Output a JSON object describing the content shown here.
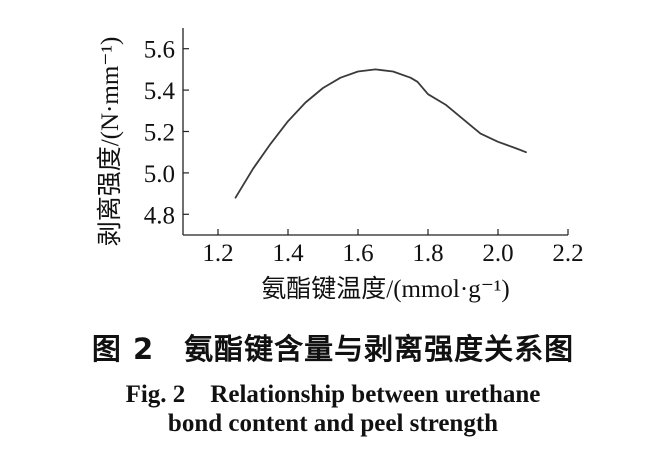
{
  "chart_data": {
    "type": "line",
    "title": "",
    "xlabel": "氨酯键温度/(mmol·g⁻¹)",
    "ylabel": "剥离强度/(N·mm⁻¹)",
    "xlim": [
      1.1,
      2.2
    ],
    "ylim": [
      4.7,
      5.7
    ],
    "xticks": [
      "1.2",
      "1.4",
      "1.6",
      "1.8",
      "2.0",
      "2.2"
    ],
    "yticks": [
      "4.8",
      "5.0",
      "5.2",
      "5.4",
      "5.6"
    ],
    "grid": false,
    "series": [
      {
        "x": [
          1.25,
          1.3,
          1.35,
          1.4,
          1.45,
          1.5,
          1.55,
          1.6,
          1.65,
          1.7,
          1.75,
          1.77,
          1.8,
          1.85,
          1.9,
          1.95,
          2.0,
          2.05,
          2.08
        ],
        "y": [
          4.88,
          5.02,
          5.14,
          5.25,
          5.34,
          5.41,
          5.46,
          5.49,
          5.5,
          5.49,
          5.46,
          5.44,
          5.38,
          5.33,
          5.26,
          5.19,
          5.15,
          5.12,
          5.1
        ]
      }
    ]
  },
  "caption": {
    "cn": "图 2　氨酯键含量与剥离强度关系图",
    "en_line1": "Fig. 2　Relationship between urethane",
    "en_line2": "bond content and peel strength"
  },
  "colors": {
    "line": "#3a3a3a",
    "axis": "#222222"
  }
}
